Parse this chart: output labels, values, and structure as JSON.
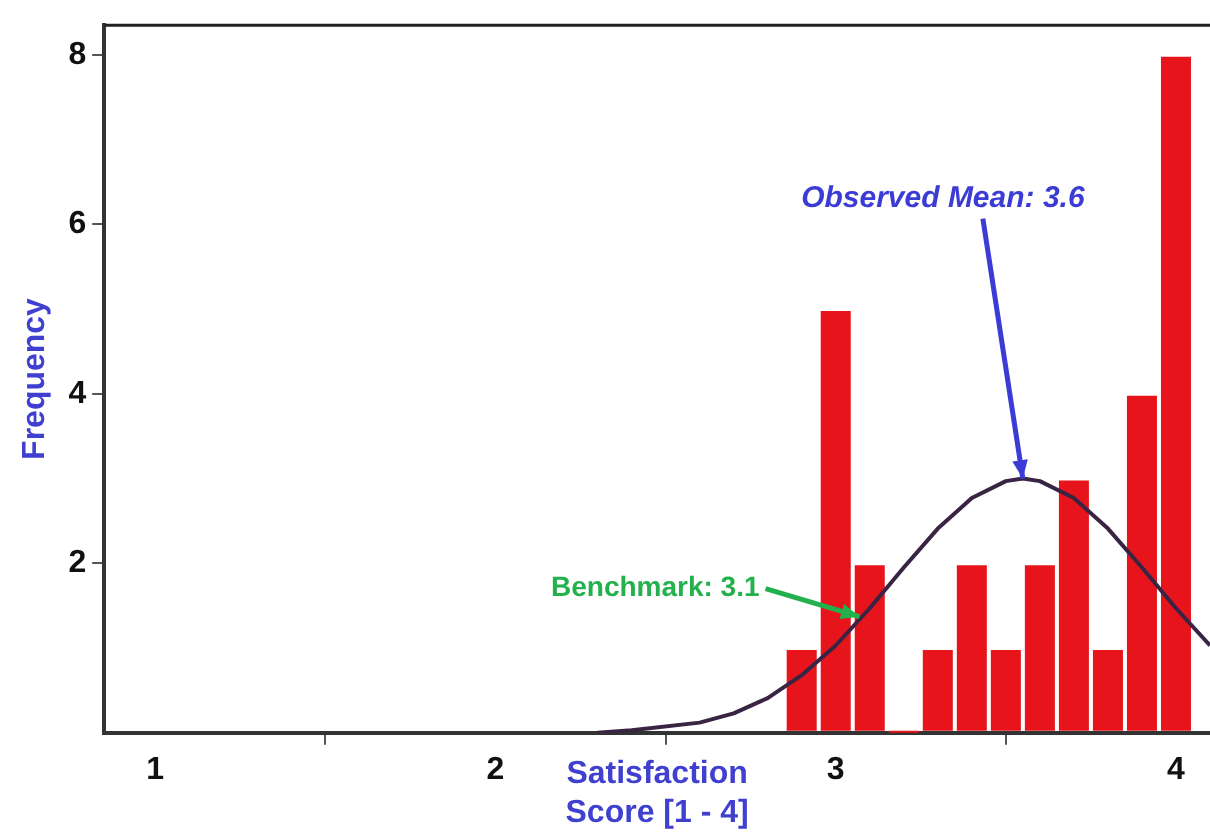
{
  "chart_data": {
    "type": "histogram",
    "xlabel": "Satisfaction Score [1 - 4]",
    "ylabel": "Frequency",
    "xlim": [
      0.85,
      4.1
    ],
    "xticks": [
      1,
      2,
      3,
      4
    ],
    "ylim": [
      0,
      8.35
    ],
    "yticks": [
      2,
      4,
      6,
      8
    ],
    "grid": false,
    "legend": false,
    "series": [
      {
        "type": "histogram",
        "bins": [
          2.85,
          2.95,
          3.05,
          3.15,
          3.25,
          3.35,
          3.45,
          3.55,
          3.65,
          3.75,
          3.85,
          3.95,
          4.05
        ],
        "values": [
          1,
          5,
          2,
          0,
          1,
          2,
          1,
          2,
          3,
          1,
          4,
          8
        ],
        "color": "#e8141c"
      },
      {
        "type": "line",
        "x": [
          2.3,
          2.4,
          2.6,
          2.7,
          2.8,
          2.9,
          3.0,
          3.1,
          3.2,
          3.3,
          3.4,
          3.5,
          3.55,
          3.6,
          3.7,
          3.8,
          3.9,
          4.0,
          4.1
        ],
        "values": [
          0,
          0.03,
          0.12,
          0.23,
          0.41,
          0.68,
          1.03,
          1.47,
          1.95,
          2.41,
          2.77,
          2.97,
          3,
          2.97,
          2.77,
          2.41,
          1.95,
          1.47,
          1.03
        ],
        "color": "#3a2444"
      }
    ],
    "annotations": [
      {
        "text": "Observed Mean: 3.6",
        "x": 3.55,
        "y": 3
      },
      {
        "text": "Benchmark: 3.1",
        "x": 3.07,
        "y": 1.37
      }
    ]
  }
}
